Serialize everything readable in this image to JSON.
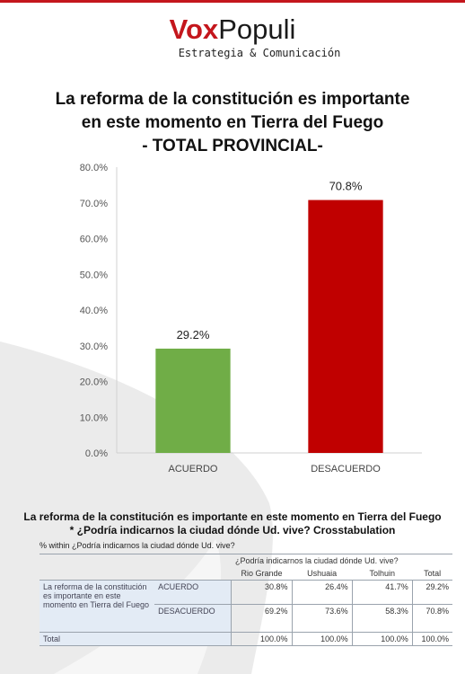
{
  "header": {
    "logo_vox": "Vox",
    "logo_populi": "Populi",
    "tagline": "Estrategia & Comunicación"
  },
  "colors": {
    "brand_red": "#c4161c",
    "acuerdo_green": "#70ad47",
    "desacuerdo_red": "#c00000"
  },
  "chart_data": {
    "type": "bar",
    "title": [
      "La reforma de la constitución es importante",
      "en este momento en Tierra del Fuego",
      "- TOTAL PROVINCIAL-"
    ],
    "categories": [
      "ACUERDO",
      "DESACUERDO"
    ],
    "values": [
      29.2,
      70.8
    ],
    "value_labels": [
      "29.2%",
      "70.8%"
    ],
    "bar_colors": [
      "#70ad47",
      "#c00000"
    ],
    "ylim": [
      0,
      80
    ],
    "yticks": [
      0,
      10,
      20,
      30,
      40,
      50,
      60,
      70,
      80
    ],
    "ytick_labels": [
      "0.0%",
      "10.0%",
      "20.0%",
      "30.0%",
      "40.0%",
      "50.0%",
      "60.0%",
      "70.0%",
      "80.0%"
    ],
    "grid": false,
    "legend": "none"
  },
  "table": {
    "title_line1": "La reforma de la constitución es importante en este momento en Tierra del Fuego",
    "title_line2": "* ¿Podría indicarnos la ciudad dónde Ud. vive? Crosstabulation",
    "note": "% within ¿Podría indicarnos la ciudad dónde Ud. vive?",
    "group_header": "¿Podría indicarnos la ciudad dónde Ud. vive?",
    "columns": [
      "Rio Grande",
      "Ushuaia",
      "Tolhuin",
      "Total"
    ],
    "row_group_label": "La reforma de la constitución es importante en este momento en Tierra del Fuego",
    "rows": [
      {
        "label": "ACUERDO",
        "values": [
          "30.8%",
          "26.4%",
          "41.7%",
          "29.2%"
        ]
      },
      {
        "label": "DESACUERDO",
        "values": [
          "69.2%",
          "73.6%",
          "58.3%",
          "70.8%"
        ]
      }
    ],
    "total_row": {
      "label": "Total",
      "values": [
        "100.0%",
        "100.0%",
        "100.0%",
        "100.0%"
      ]
    }
  }
}
